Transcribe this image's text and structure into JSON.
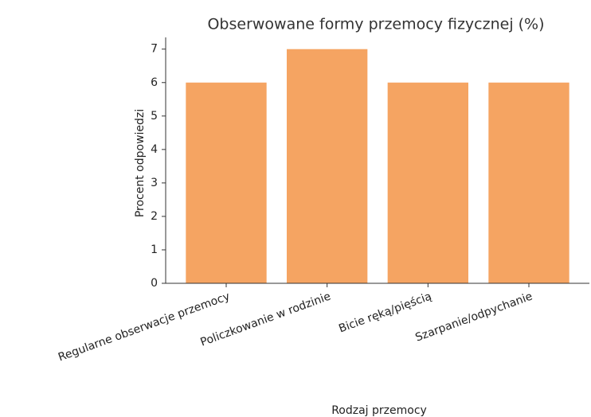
{
  "chart_data": {
    "type": "bar",
    "title": "Obserwowane formy przemocy fizycznej (%)",
    "xlabel": "Rodzaj przemocy",
    "ylabel": "Procent odpowiedzi",
    "categories": [
      "Regularne obserwacje przemocy",
      "Policzkowanie w rodzinie",
      "Bicie ręką/pięścią",
      "Szarpanie/odpychanie"
    ],
    "values": [
      6,
      7,
      6,
      6
    ],
    "color": "#f5a462",
    "ylim": [
      0,
      7.35
    ],
    "yticks": [
      0,
      1,
      2,
      3,
      4,
      5,
      6,
      7
    ],
    "grid": false
  }
}
